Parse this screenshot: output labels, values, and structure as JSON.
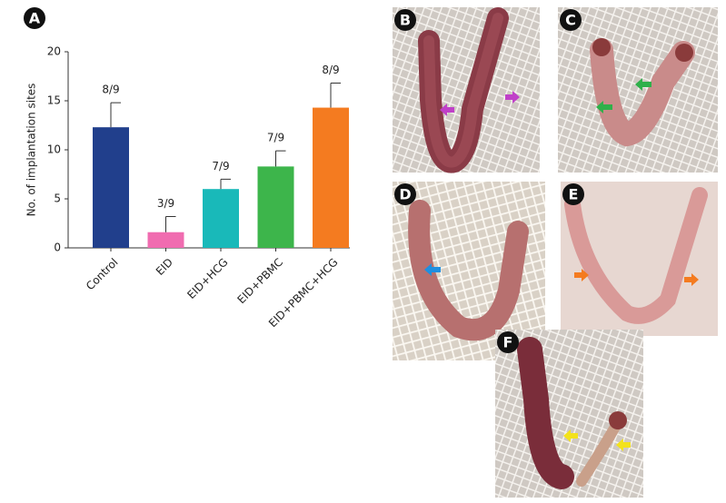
{
  "chart_data": {
    "type": "bar",
    "panel_label": "A",
    "ylabel": "No. of implantation sites",
    "categories": [
      "Control",
      "EID",
      "EID+HCG",
      "EID+PBMC",
      "EID+PBMC+HCG"
    ],
    "values": [
      12.3,
      1.6,
      6.0,
      8.3,
      14.3
    ],
    "errors": [
      2.5,
      1.6,
      1.0,
      1.6,
      2.5
    ],
    "annotations": [
      "8/9",
      "3/9",
      "7/9",
      "7/9",
      "8/9"
    ],
    "colors": [
      "#213f8c",
      "#f06cb0",
      "#19b9b9",
      "#3db54b",
      "#f47b20"
    ],
    "ylim": [
      0,
      20
    ],
    "yticks": [
      0,
      5,
      10,
      15,
      20
    ],
    "grid": false
  },
  "panels": [
    {
      "label": "B"
    },
    {
      "label": "C"
    },
    {
      "label": "D"
    },
    {
      "label": "E"
    },
    {
      "label": "F"
    }
  ]
}
